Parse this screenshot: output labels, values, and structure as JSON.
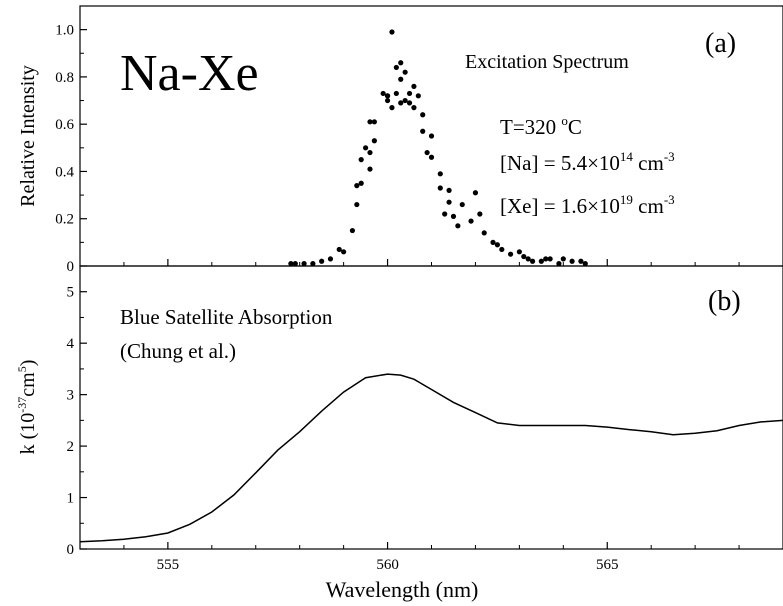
{
  "figure": {
    "big_label": "Na-Xe",
    "xlabel": "Wavelength (nm)",
    "x_ticks": [
      555,
      560,
      565
    ],
    "xlim": [
      553,
      569
    ]
  },
  "chart_data": [
    {
      "type": "scatter",
      "panel_label": "(a)",
      "ylabel": "Relative Intensity",
      "ylim": [
        0,
        1.1
      ],
      "y_ticks": [
        0,
        0.2,
        0.4,
        0.6,
        0.8,
        1.0
      ],
      "y_tick_labels": [
        "0",
        "0.2",
        "0.4",
        "0.6",
        "0.8",
        "1.0"
      ],
      "annotations": {
        "title": "Excitation Spectrum",
        "temp_base": "T=320 ",
        "temp_sup": "o",
        "temp_unit": "C",
        "na_base": "[Na] = 5.4×10",
        "na_exp": "14",
        "na_unit": " cm",
        "na_unit_exp": "-3",
        "xe_base": "[Xe] = 1.6×10",
        "xe_exp": "19",
        "xe_unit": " cm",
        "xe_unit_exp": "-3"
      },
      "x": [
        557.8,
        557.9,
        558.1,
        558.3,
        558.5,
        558.7,
        558.9,
        559.0,
        559.2,
        559.3,
        559.3,
        559.4,
        559.4,
        559.5,
        559.6,
        559.6,
        559.6,
        559.7,
        559.7,
        559.9,
        560.0,
        560.0,
        560.0,
        560.1,
        560.1,
        560.2,
        560.2,
        560.3,
        560.3,
        560.3,
        560.4,
        560.4,
        560.5,
        560.5,
        560.6,
        560.6,
        560.7,
        560.8,
        560.8,
        560.9,
        561.0,
        561.0,
        561.2,
        561.2,
        561.3,
        561.4,
        561.4,
        561.5,
        561.6,
        561.7,
        561.9,
        562.0,
        562.1,
        562.2,
        562.4,
        562.5,
        562.6,
        562.8,
        563.0,
        563.1,
        563.2,
        563.3,
        563.5,
        563.6,
        563.7,
        563.9,
        564.0,
        564.2,
        564.4,
        564.5
      ],
      "y": [
        0.01,
        0.01,
        0.01,
        0.01,
        0.02,
        0.03,
        0.07,
        0.06,
        0.15,
        0.26,
        0.34,
        0.35,
        0.45,
        0.5,
        0.48,
        0.61,
        0.41,
        0.61,
        0.53,
        0.73,
        0.72,
        0.72,
        0.7,
        0.99,
        0.67,
        0.84,
        0.73,
        0.79,
        0.86,
        0.69,
        0.82,
        0.7,
        0.69,
        0.73,
        0.67,
        0.76,
        0.72,
        0.64,
        0.57,
        0.48,
        0.46,
        0.55,
        0.33,
        0.39,
        0.22,
        0.32,
        0.27,
        0.21,
        0.17,
        0.26,
        0.19,
        0.31,
        0.22,
        0.14,
        0.1,
        0.09,
        0.07,
        0.05,
        0.06,
        0.04,
        0.03,
        0.02,
        0.02,
        0.03,
        0.03,
        0.01,
        0.03,
        0.02,
        0.02,
        0.01
      ]
    },
    {
      "type": "line",
      "panel_label": "(b)",
      "ylabel_base": "k (10",
      "ylabel_exp1": "-37",
      "ylabel_mid": "cm",
      "ylabel_exp2": "5",
      "ylabel_end": ")",
      "ylim": [
        0,
        5.5
      ],
      "y_ticks": [
        0,
        1,
        2,
        3,
        4,
        5
      ],
      "y_tick_labels": [
        "0",
        "1",
        "2",
        "3",
        "4",
        "5"
      ],
      "annotations": {
        "line1": "Blue Satellite Absorption",
        "line2": "(Chung et al.)"
      },
      "x": [
        553.0,
        553.5,
        554.0,
        554.5,
        555.0,
        555.5,
        556.0,
        556.5,
        557.0,
        557.5,
        558.0,
        558.5,
        559.0,
        559.5,
        560.0,
        560.3,
        560.6,
        561.0,
        561.5,
        562.0,
        562.5,
        563.0,
        563.5,
        564.0,
        564.5,
        565.0,
        565.5,
        566.0,
        566.5,
        567.0,
        567.5,
        568.0,
        568.5,
        569.0
      ],
      "y": [
        0.14,
        0.16,
        0.19,
        0.24,
        0.31,
        0.48,
        0.72,
        1.05,
        1.48,
        1.92,
        2.28,
        2.68,
        3.05,
        3.33,
        3.4,
        3.38,
        3.3,
        3.1,
        2.85,
        2.65,
        2.45,
        2.4,
        2.4,
        2.4,
        2.4,
        2.37,
        2.32,
        2.28,
        2.22,
        2.25,
        2.3,
        2.4,
        2.47,
        2.5
      ]
    }
  ]
}
